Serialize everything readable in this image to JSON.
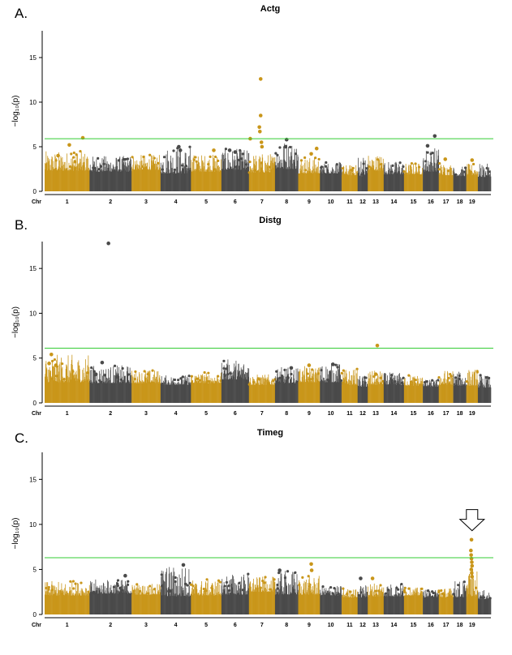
{
  "figure": {
    "colors": {
      "gold": "#c9961a",
      "gray": "#4a4a4a",
      "threshold": "#33cc33",
      "axis": "#000000"
    }
  },
  "chart_data": [
    {
      "type": "scatter",
      "panel_letter": "A.",
      "title": "Actg",
      "ylabel": "−log₁₀(p)",
      "xlabel_prefix": "Chr",
      "ylim": [
        0,
        18
      ],
      "yticks": [
        0,
        5,
        10,
        15
      ],
      "threshold": 5.9,
      "chromosomes": [
        {
          "label": "1",
          "base": 2.3,
          "peak": 4.5,
          "hits": [
            [
              0.55,
              5.2
            ],
            [
              0.85,
              6.0
            ],
            [
              0.3,
              4.0
            ]
          ]
        },
        {
          "label": "2",
          "base": 2.2,
          "peak": 4.0,
          "hits": []
        },
        {
          "label": "3",
          "base": 2.4,
          "peak": 4.1,
          "hits": []
        },
        {
          "label": "4",
          "base": 2.0,
          "peak": 5.1,
          "hits": [
            [
              0.6,
              5.0
            ],
            [
              0.65,
              4.6
            ]
          ]
        },
        {
          "label": "5",
          "base": 2.2,
          "peak": 4.2,
          "hits": [
            [
              0.75,
              4.6
            ]
          ]
        },
        {
          "label": "6",
          "base": 2.4,
          "peak": 4.8,
          "hits": [
            [
              0.3,
              4.6
            ],
            [
              0.5,
              4.4
            ]
          ]
        },
        {
          "label": "7",
          "base": 2.1,
          "peak": 4.3,
          "hits": [
            [
              0.45,
              12.6
            ],
            [
              0.45,
              8.5
            ],
            [
              0.4,
              7.2
            ],
            [
              0.42,
              6.7
            ],
            [
              0.48,
              5.5
            ],
            [
              0.5,
              5.0
            ],
            [
              0.05,
              5.9
            ]
          ]
        },
        {
          "label": "8",
          "base": 2.5,
          "peak": 5.8,
          "hits": [
            [
              0.5,
              5.8
            ],
            [
              0.45,
              5.0
            ]
          ]
        },
        {
          "label": "9",
          "base": 2.0,
          "peak": 3.9,
          "hits": [
            [
              0.85,
              4.8
            ],
            [
              0.6,
              4.2
            ]
          ]
        },
        {
          "label": "10",
          "base": 2.0,
          "peak": 3.3,
          "hits": []
        },
        {
          "label": "11",
          "base": 1.8,
          "peak": 3.0,
          "hits": []
        },
        {
          "label": "12",
          "base": 1.7,
          "peak": 4.2,
          "hits": []
        },
        {
          "label": "13",
          "base": 2.3,
          "peak": 4.2,
          "hits": []
        },
        {
          "label": "14",
          "base": 1.9,
          "peak": 3.4,
          "hits": []
        },
        {
          "label": "15",
          "base": 1.9,
          "peak": 3.2,
          "hits": []
        },
        {
          "label": "16",
          "base": 2.2,
          "peak": 5.0,
          "hits": [
            [
              0.75,
              6.2
            ],
            [
              0.3,
              5.1
            ]
          ]
        },
        {
          "label": "17",
          "base": 1.8,
          "peak": 3.2,
          "hits": [
            [
              0.45,
              3.6
            ]
          ]
        },
        {
          "label": "18",
          "base": 1.7,
          "peak": 2.8,
          "hits": []
        },
        {
          "label": "19",
          "base": 1.8,
          "peak": 3.1,
          "hits": [
            [
              0.5,
              3.5
            ]
          ]
        },
        {
          "label": "",
          "base": 1.6,
          "peak": 3.1,
          "hits": []
        }
      ]
    },
    {
      "type": "scatter",
      "panel_letter": "B.",
      "title": "Distg",
      "ylabel": "−log₁₀(p)",
      "xlabel_prefix": "Chr",
      "ylim": [
        0,
        18
      ],
      "yticks": [
        0,
        5,
        10,
        15
      ],
      "threshold": 6.1,
      "chromosomes": [
        {
          "label": "1",
          "base": 2.3,
          "peak": 5.4,
          "hits": [
            [
              0.15,
              5.4
            ],
            [
              0.1,
              4.4
            ],
            [
              0.25,
              4.2
            ]
          ]
        },
        {
          "label": "2",
          "base": 2.2,
          "peak": 4.2,
          "hits": [
            [
              0.45,
              17.8
            ],
            [
              0.3,
              4.5
            ],
            [
              0.15,
              3.2
            ],
            [
              0.65,
              2.9
            ]
          ]
        },
        {
          "label": "3",
          "base": 2.2,
          "peak": 3.7,
          "hits": []
        },
        {
          "label": "4",
          "base": 2.0,
          "peak": 3.1,
          "hits": []
        },
        {
          "label": "5",
          "base": 2.2,
          "peak": 3.4,
          "hits": []
        },
        {
          "label": "6",
          "base": 2.6,
          "peak": 4.9,
          "hits": []
        },
        {
          "label": "7",
          "base": 2.0,
          "peak": 3.2,
          "hits": []
        },
        {
          "label": "8",
          "base": 2.2,
          "peak": 4.0,
          "hits": [
            [
              0.7,
              3.9
            ],
            [
              0.55,
              2.8
            ]
          ]
        },
        {
          "label": "9",
          "base": 2.3,
          "peak": 4.1,
          "hits": [
            [
              0.5,
              4.2
            ]
          ]
        },
        {
          "label": "10",
          "base": 2.3,
          "peak": 4.5,
          "hits": [
            [
              0.6,
              4.3
            ]
          ]
        },
        {
          "label": "11",
          "base": 2.0,
          "peak": 3.8,
          "hits": []
        },
        {
          "label": "12",
          "base": 1.8,
          "peak": 3.1,
          "hits": []
        },
        {
          "label": "13",
          "base": 2.0,
          "peak": 3.6,
          "hits": [
            [
              0.6,
              6.4
            ],
            [
              0.5,
              3.2
            ]
          ]
        },
        {
          "label": "14",
          "base": 2.0,
          "peak": 3.4,
          "hits": []
        },
        {
          "label": "15",
          "base": 1.9,
          "peak": 3.2,
          "hits": []
        },
        {
          "label": "16",
          "base": 1.8,
          "peak": 2.6,
          "hits": []
        },
        {
          "label": "17",
          "base": 2.0,
          "peak": 3.7,
          "hits": []
        },
        {
          "label": "18",
          "base": 1.9,
          "peak": 3.5,
          "hits": []
        },
        {
          "label": "19",
          "base": 1.9,
          "peak": 3.8,
          "hits": []
        },
        {
          "label": "",
          "base": 1.7,
          "peak": 3.1,
          "hits": []
        }
      ]
    },
    {
      "type": "scatter",
      "panel_letter": "C.",
      "title": "Timeg",
      "ylabel": "−log₁₀(p)",
      "xlabel_prefix": "Chr",
      "ylim": [
        0,
        18
      ],
      "yticks": [
        0,
        5,
        10,
        15
      ],
      "threshold": 6.3,
      "arrow_chromosome": "19",
      "chromosomes": [
        {
          "label": "1",
          "base": 2.1,
          "peak": 3.7,
          "hits": []
        },
        {
          "label": "2",
          "base": 2.3,
          "peak": 3.9,
          "hits": [
            [
              0.85,
              4.3
            ]
          ]
        },
        {
          "label": "3",
          "base": 2.2,
          "peak": 3.4,
          "hits": []
        },
        {
          "label": "4",
          "base": 2.0,
          "peak": 5.5,
          "hits": [
            [
              0.75,
              5.5
            ],
            [
              0.3,
              2.6
            ]
          ]
        },
        {
          "label": "5",
          "base": 2.1,
          "peak": 3.9,
          "hits": []
        },
        {
          "label": "6",
          "base": 2.2,
          "peak": 4.6,
          "hits": []
        },
        {
          "label": "7",
          "base": 2.5,
          "peak": 4.2,
          "hits": []
        },
        {
          "label": "8",
          "base": 2.2,
          "peak": 4.9,
          "hits": [
            [
              0.2,
              4.9
            ]
          ]
        },
        {
          "label": "9",
          "base": 2.2,
          "peak": 4.3,
          "hits": [
            [
              0.6,
              5.6
            ],
            [
              0.62,
              4.9
            ]
          ]
        },
        {
          "label": "10",
          "base": 2.1,
          "peak": 3.2,
          "hits": []
        },
        {
          "label": "11",
          "base": 1.9,
          "peak": 2.9,
          "hits": []
        },
        {
          "label": "12",
          "base": 1.9,
          "peak": 3.3,
          "hits": [
            [
              0.3,
              4.0
            ]
          ]
        },
        {
          "label": "13",
          "base": 2.0,
          "peak": 3.6,
          "hits": [
            [
              0.3,
              4.0
            ]
          ]
        },
        {
          "label": "14",
          "base": 2.0,
          "peak": 3.5,
          "hits": []
        },
        {
          "label": "15",
          "base": 2.1,
          "peak": 3.0,
          "hits": []
        },
        {
          "label": "16",
          "base": 1.9,
          "peak": 2.8,
          "hits": []
        },
        {
          "label": "17",
          "base": 1.9,
          "peak": 3.0,
          "hits": []
        },
        {
          "label": "18",
          "base": 1.9,
          "peak": 3.8,
          "hits": []
        },
        {
          "label": "19",
          "base": 2.0,
          "peak": 5.0,
          "hits": [
            [
              0.45,
              8.3
            ],
            [
              0.4,
              7.1
            ],
            [
              0.42,
              6.6
            ],
            [
              0.45,
              6.2
            ],
            [
              0.48,
              5.8
            ],
            [
              0.5,
              5.4
            ],
            [
              0.43,
              5.0
            ],
            [
              0.47,
              4.6
            ],
            [
              0.5,
              4.2
            ]
          ]
        },
        {
          "label": "",
          "base": 1.7,
          "peak": 2.7,
          "hits": []
        }
      ]
    }
  ]
}
